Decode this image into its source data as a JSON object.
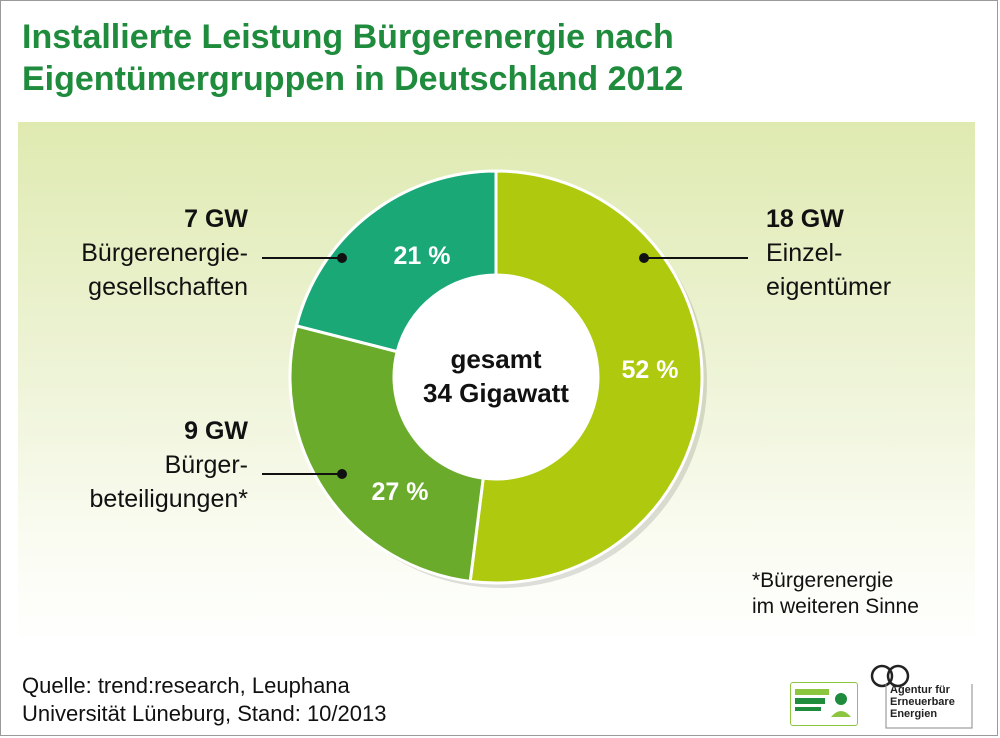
{
  "title": {
    "line1": "Installierte Leistung Bürgerenergie nach",
    "line2": "Eigentümergruppen in Deutschland 2012"
  },
  "chart_data": {
    "type": "pie",
    "donut": true,
    "center_label": [
      "gesamt",
      "34 Gigawatt"
    ],
    "slices": [
      {
        "gw": "18 GW",
        "percent": 52,
        "percent_label": "52 %",
        "label_lines": [
          "Einzel-",
          "eigentümer"
        ],
        "color": "#aec90e"
      },
      {
        "gw": "9 GW",
        "percent": 27,
        "percent_label": "27 %",
        "label_lines": [
          "Bürger-",
          "beteiligungen*"
        ],
        "color": "#6aab2c"
      },
      {
        "gw": "7 GW",
        "percent": 21,
        "percent_label": "21 %",
        "label_lines": [
          "Bürgerenergie-",
          "gesellschaften"
        ],
        "color": "#1aa877"
      }
    ]
  },
  "note": [
    "*Bürgerenergie",
    "im weiteren Sinne"
  ],
  "source": [
    "Quelle: trend:research, Leuphana",
    "Universität Lüneburg, Stand: 10/2013"
  ],
  "logos": {
    "agency": [
      "Agentur für",
      "Erneuerbare",
      "Energien"
    ],
    "campaign_color": "#8cc63f"
  }
}
